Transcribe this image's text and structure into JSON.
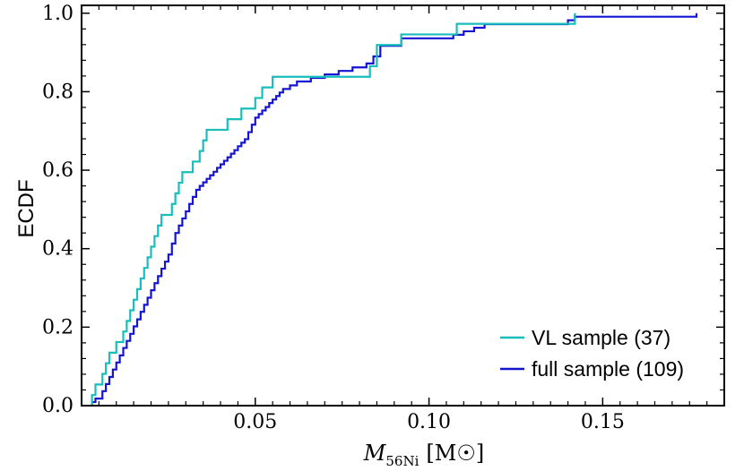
{
  "chart_data": {
    "type": "line",
    "subtype": "ecdf-step",
    "title": "",
    "xlabel": {
      "symbol": "M",
      "subscript": "56Ni",
      "unit": "[M☉]"
    },
    "ylabel": "ECDF",
    "xlim": [
      0.0,
      0.185
    ],
    "ylim": [
      0.0,
      1.02
    ],
    "xticks": [
      0.05,
      0.1,
      0.15
    ],
    "xtick_labels": [
      "0.05",
      "0.10",
      "0.15"
    ],
    "yticks": [
      0.0,
      0.2,
      0.4,
      0.6,
      0.8,
      1.0
    ],
    "ytick_labels": [
      "0.0",
      "0.2",
      "0.4",
      "0.6",
      "0.8",
      "1.0"
    ],
    "legend_position": "bottom-right",
    "colors": {
      "vl": "#17BEBB",
      "full": "#1414D2"
    },
    "series": [
      {
        "name": "VL sample (37)",
        "key": "vl",
        "x": [
          0.003,
          0.004,
          0.006,
          0.007,
          0.008,
          0.01,
          0.012,
          0.013,
          0.014,
          0.015,
          0.016,
          0.017,
          0.018,
          0.019,
          0.02,
          0.021,
          0.022,
          0.023,
          0.024,
          0.026,
          0.027,
          0.028,
          0.029,
          0.03,
          0.032,
          0.034,
          0.035,
          0.036,
          0.037,
          0.042,
          0.046,
          0.05,
          0.052,
          0.054,
          0.055,
          0.083,
          0.085,
          0.092,
          0.108,
          0.142
        ],
        "y": [
          0.027,
          0.054,
          0.081,
          0.108,
          0.135,
          0.162,
          0.189,
          0.216,
          0.243,
          0.27,
          0.297,
          0.324,
          0.351,
          0.378,
          0.405,
          0.432,
          0.459,
          0.486,
          0.486,
          0.514,
          0.541,
          0.568,
          0.595,
          0.595,
          0.622,
          0.649,
          0.676,
          0.703,
          0.703,
          0.73,
          0.757,
          0.784,
          0.811,
          0.811,
          0.838,
          0.865,
          0.919,
          0.946,
          0.973,
          1.0
        ]
      },
      {
        "name": "full sample (109)",
        "key": "full",
        "x": [
          0.003,
          0.004,
          0.006,
          0.007,
          0.008,
          0.009,
          0.01,
          0.011,
          0.012,
          0.013,
          0.014,
          0.015,
          0.016,
          0.017,
          0.018,
          0.019,
          0.02,
          0.021,
          0.022,
          0.023,
          0.024,
          0.025,
          0.026,
          0.027,
          0.028,
          0.029,
          0.03,
          0.031,
          0.032,
          0.033,
          0.034,
          0.035,
          0.036,
          0.037,
          0.038,
          0.039,
          0.04,
          0.041,
          0.042,
          0.043,
          0.044,
          0.045,
          0.046,
          0.047,
          0.048,
          0.049,
          0.05,
          0.051,
          0.052,
          0.053,
          0.054,
          0.055,
          0.056,
          0.057,
          0.058,
          0.06,
          0.062,
          0.064,
          0.066,
          0.068,
          0.07,
          0.072,
          0.074,
          0.076,
          0.078,
          0.08,
          0.082,
          0.084,
          0.086,
          0.088,
          0.092,
          0.1,
          0.107,
          0.11,
          0.113,
          0.116,
          0.122,
          0.14,
          0.142,
          0.177
        ],
        "y": [
          0.009,
          0.018,
          0.037,
          0.055,
          0.073,
          0.092,
          0.11,
          0.128,
          0.147,
          0.165,
          0.183,
          0.202,
          0.22,
          0.239,
          0.257,
          0.275,
          0.294,
          0.312,
          0.33,
          0.349,
          0.367,
          0.385,
          0.413,
          0.44,
          0.459,
          0.477,
          0.495,
          0.514,
          0.532,
          0.55,
          0.56,
          0.569,
          0.578,
          0.587,
          0.596,
          0.606,
          0.615,
          0.624,
          0.633,
          0.642,
          0.651,
          0.661,
          0.67,
          0.679,
          0.697,
          0.716,
          0.734,
          0.743,
          0.752,
          0.761,
          0.771,
          0.78,
          0.789,
          0.798,
          0.807,
          0.816,
          0.826,
          0.826,
          0.835,
          0.835,
          0.844,
          0.844,
          0.853,
          0.853,
          0.862,
          0.862,
          0.872,
          0.89,
          0.917,
          0.917,
          0.936,
          0.936,
          0.945,
          0.954,
          0.963,
          0.972,
          0.972,
          0.982,
          0.991,
          1.0
        ]
      }
    ]
  }
}
